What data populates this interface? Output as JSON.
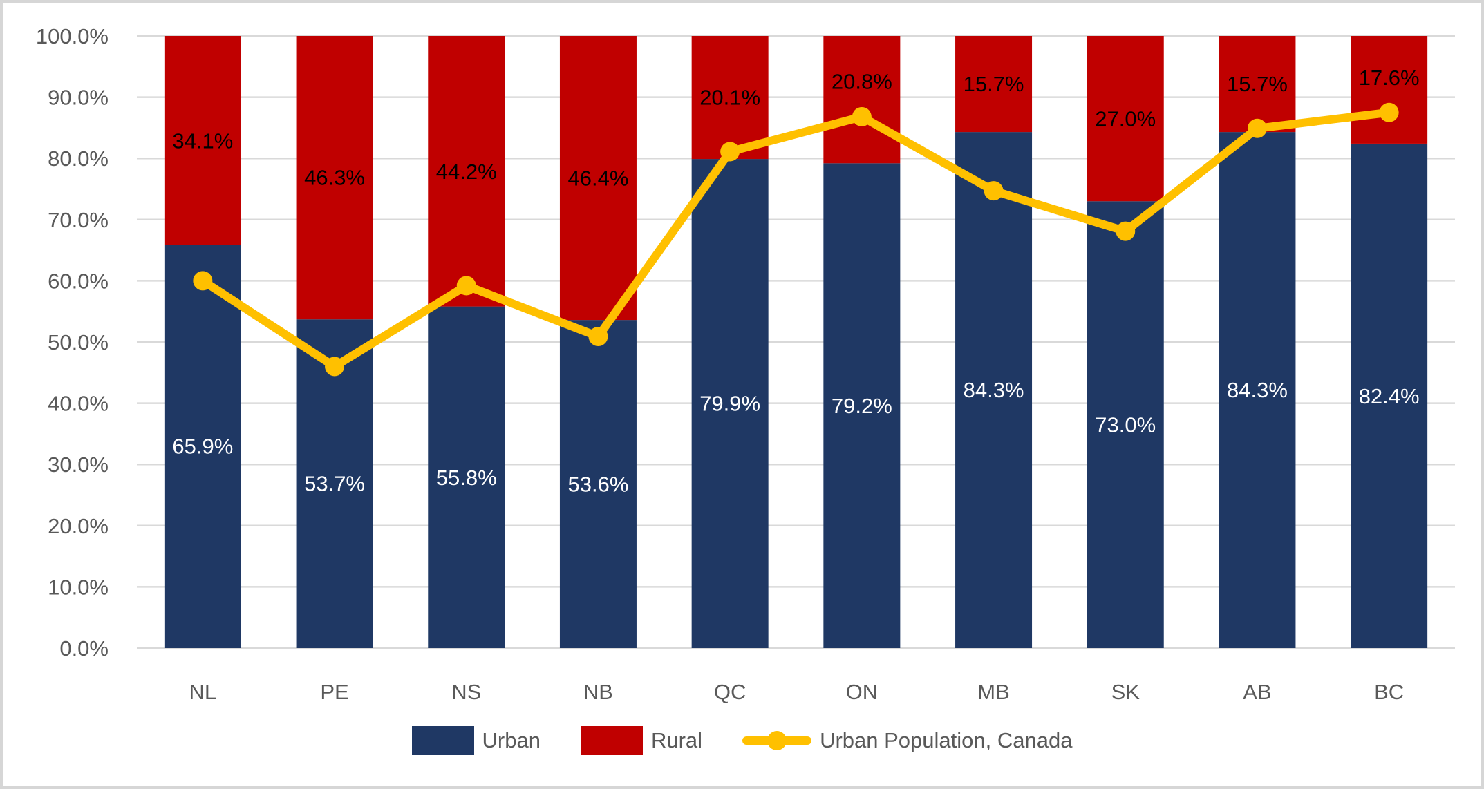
{
  "chart_data": {
    "type": "bar",
    "subtype": "stacked-column-with-line-overlay",
    "categories": [
      "NL",
      "PE",
      "NS",
      "NB",
      "QC",
      "ON",
      "MB",
      "SK",
      "AB",
      "BC"
    ],
    "series": [
      {
        "name": "Urban",
        "chart": "bar",
        "stack": "population",
        "color": "#1F3864",
        "values": [
          65.9,
          53.7,
          55.8,
          53.6,
          79.9,
          79.2,
          84.3,
          73.0,
          84.3,
          82.4
        ],
        "data_labels": [
          "65.9%",
          "53.7%",
          "55.8%",
          "53.6%",
          "79.9%",
          "79.2%",
          "84.3%",
          "73.0%",
          "84.3%",
          "82.4%"
        ],
        "label_color": "#FFFFFF",
        "label_anchor_pct": [
          33.0,
          26.9,
          27.9,
          26.8,
          40.0,
          39.6,
          42.2,
          36.5,
          42.2,
          41.2
        ]
      },
      {
        "name": "Rural",
        "chart": "bar",
        "stack": "population",
        "color": "#C00000",
        "values": [
          34.1,
          46.3,
          44.2,
          46.4,
          20.1,
          20.8,
          15.7,
          27.0,
          15.7,
          17.6
        ],
        "data_labels": [
          "34.1%",
          "46.3%",
          "44.2%",
          "46.4%",
          "20.1%",
          "20.8%",
          "15.7%",
          "27.0%",
          "15.7%",
          "17.6%"
        ],
        "label_color": "#000000",
        "label_anchor_pct": [
          82.9,
          76.9,
          77.9,
          76.8,
          90.0,
          92.6,
          92.2,
          86.5,
          92.2,
          93.2
        ]
      },
      {
        "name": "Urban Population, Canada",
        "chart": "line",
        "marker": "circle",
        "color": "#FFC000",
        "values": [
          60.0,
          46.0,
          59.2,
          50.9,
          81.1,
          86.8,
          74.7,
          68.1,
          84.9,
          87.5
        ]
      }
    ],
    "y_axis": {
      "min": 0,
      "max": 100,
      "step": 10,
      "tick_labels": [
        "0.0%",
        "10.0%",
        "20.0%",
        "30.0%",
        "40.0%",
        "50.0%",
        "60.0%",
        "70.0%",
        "80.0%",
        "90.0%",
        "100.0%"
      ],
      "label_color": "#595959"
    },
    "x_axis": {
      "label_color": "#595959"
    },
    "grid": {
      "show": true,
      "color": "#D9D9D9"
    },
    "legend": {
      "position": "bottom",
      "text_color": "#595959",
      "items": [
        {
          "label": "Urban",
          "swatch": "rect",
          "color": "#1F3864"
        },
        {
          "label": "Rural",
          "swatch": "rect",
          "color": "#C00000"
        },
        {
          "label": "Urban Population, Canada",
          "swatch": "line-marker",
          "color": "#FFC000"
        }
      ]
    }
  },
  "frame": {
    "border_color": "#D6D6D6",
    "background": "#FFFFFF"
  }
}
